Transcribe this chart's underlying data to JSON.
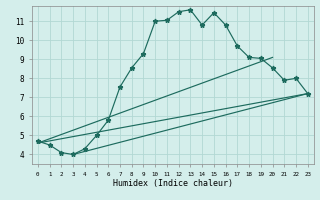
{
  "title": "",
  "xlabel": "Humidex (Indice chaleur)",
  "xlim": [
    -0.5,
    23.5
  ],
  "ylim": [
    3.5,
    11.8
  ],
  "xticks": [
    0,
    1,
    2,
    3,
    4,
    5,
    6,
    7,
    8,
    9,
    10,
    11,
    12,
    13,
    14,
    15,
    16,
    17,
    18,
    19,
    20,
    21,
    22,
    23
  ],
  "yticks": [
    4,
    5,
    6,
    7,
    8,
    9,
    10,
    11
  ],
  "bg_color": "#d4eeeb",
  "line_color": "#1d6b5e",
  "grid_color": "#b2d8d4",
  "series1_x": [
    0,
    1,
    2,
    3,
    4,
    5,
    6,
    7,
    8,
    9,
    10,
    11,
    12,
    13,
    14,
    15,
    16,
    17,
    18,
    19,
    20,
    21,
    22,
    23
  ],
  "series1_y": [
    4.7,
    4.5,
    4.1,
    4.0,
    4.3,
    5.0,
    5.8,
    7.55,
    8.55,
    9.3,
    11.0,
    11.05,
    11.5,
    11.6,
    10.8,
    11.45,
    10.8,
    9.7,
    9.1,
    9.05,
    8.55,
    7.9,
    8.0,
    7.2
  ],
  "series2_x": [
    0,
    20
  ],
  "series2_y": [
    4.6,
    9.1
  ],
  "series3_x": [
    0,
    23
  ],
  "series3_y": [
    4.6,
    7.2
  ],
  "series4_x": [
    3,
    23
  ],
  "series4_y": [
    4.0,
    7.2
  ]
}
